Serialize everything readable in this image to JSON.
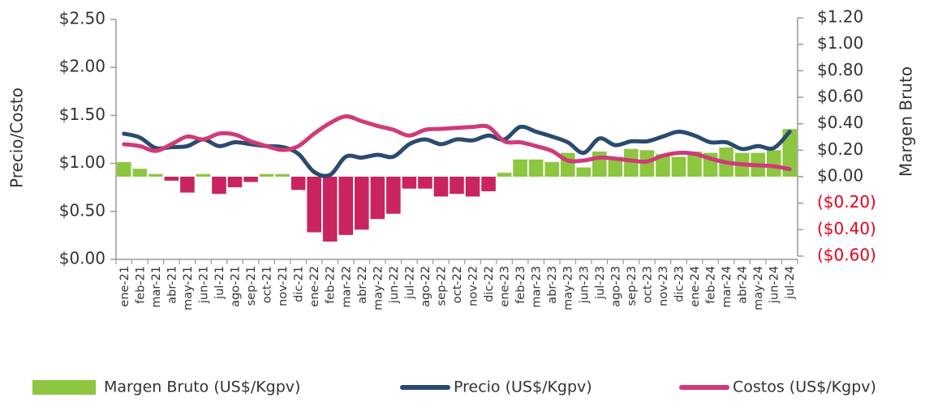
{
  "chart_data": {
    "type": "combo",
    "y_label": "Precio/Costo",
    "y2_label": "Margen Bruto",
    "categories": [
      "ene-21",
      "feb-21",
      "mar-21",
      "abr-21",
      "may-21",
      "jun-21",
      "jul-21",
      "ago-21",
      "sep-21",
      "oct-21",
      "nov-21",
      "dic-21",
      "ene-22",
      "feb-22",
      "mar-22",
      "abr-22",
      "may-22",
      "jun-22",
      "jul-22",
      "ago-22",
      "sep-22",
      "oct-22",
      "nov-22",
      "dic-22",
      "ene-23",
      "feb-23",
      "mar-23",
      "abr-23",
      "may-23",
      "jun-23",
      "jul-23",
      "ago-23",
      "sep-23",
      "oct-23",
      "nov-23",
      "dic-23",
      "ene-24",
      "feb-24",
      "mar-24",
      "abr-24",
      "may-24",
      "jun-24",
      "jul-24"
    ],
    "series": [
      {
        "name": "Margen Bruto (US$/Kgpv)",
        "type": "bar",
        "axis": "y2",
        "color": "#8dc63f",
        "negative_color": "#c9245f",
        "values": [
          0.11,
          0.06,
          0.02,
          -0.03,
          -0.12,
          0.02,
          -0.13,
          -0.08,
          -0.04,
          0.02,
          0.02,
          -0.1,
          -0.42,
          -0.49,
          -0.44,
          -0.4,
          -0.32,
          -0.28,
          -0.09,
          -0.09,
          -0.15,
          -0.13,
          -0.15,
          -0.11,
          0.03,
          0.13,
          0.13,
          0.11,
          0.18,
          0.07,
          0.19,
          0.15,
          0.21,
          0.2,
          0.17,
          0.15,
          0.19,
          0.18,
          0.22,
          0.18,
          0.18,
          0.2,
          0.36
        ]
      },
      {
        "name": "Precio (US$/Kgpv)",
        "type": "line",
        "color": "#2b4a6f",
        "values": [
          1.31,
          1.27,
          1.16,
          1.17,
          1.18,
          1.25,
          1.18,
          1.22,
          1.2,
          1.18,
          1.17,
          1.1,
          0.91,
          0.88,
          1.07,
          1.06,
          1.09,
          1.07,
          1.2,
          1.25,
          1.2,
          1.25,
          1.24,
          1.29,
          1.25,
          1.38,
          1.33,
          1.28,
          1.22,
          1.11,
          1.26,
          1.19,
          1.23,
          1.23,
          1.28,
          1.33,
          1.29,
          1.22,
          1.22,
          1.15,
          1.18,
          1.16,
          1.33
        ]
      },
      {
        "name": "Costos (US$/Kgpv)",
        "type": "line",
        "color": "#d03a78",
        "values": [
          1.2,
          1.18,
          1.13,
          1.2,
          1.28,
          1.25,
          1.31,
          1.3,
          1.23,
          1.18,
          1.14,
          1.18,
          1.31,
          1.42,
          1.49,
          1.44,
          1.39,
          1.35,
          1.29,
          1.35,
          1.36,
          1.37,
          1.38,
          1.38,
          1.23,
          1.22,
          1.18,
          1.13,
          1.03,
          1.03,
          1.06,
          1.05,
          1.03,
          1.02,
          1.08,
          1.11,
          1.1,
          1.05,
          1.01,
          0.99,
          0.98,
          0.97,
          0.94
        ]
      }
    ],
    "ylim": [
      0,
      2.5
    ],
    "yticks": [
      {
        "value": 0,
        "label": "$0.00"
      },
      {
        "value": 0.5,
        "label": "$0.50"
      },
      {
        "value": 1,
        "label": "$1.00"
      },
      {
        "value": 1.5,
        "label": "$1.50"
      },
      {
        "value": 2,
        "label": "$2.00"
      },
      {
        "value": 2.5,
        "label": "$2.50"
      }
    ],
    "y2lim": [
      -0.6,
      1.2
    ],
    "y2ticks": [
      {
        "value": -0.6,
        "label": "($0.60)"
      },
      {
        "value": -0.4,
        "label": "($0.40)"
      },
      {
        "value": -0.2,
        "label": "($0.20)"
      },
      {
        "value": 0,
        "label": "$0.00"
      },
      {
        "value": 0.2,
        "label": "$0.20"
      },
      {
        "value": 0.4,
        "label": "$0.40"
      },
      {
        "value": 0.6,
        "label": "$0.60"
      },
      {
        "value": 0.8,
        "label": "$0.80"
      },
      {
        "value": 1,
        "label": "$1.00"
      },
      {
        "value": 1.2,
        "label": "$1.20"
      }
    ],
    "negative_tick_color": "#e8001c",
    "legend": "bottom"
  }
}
